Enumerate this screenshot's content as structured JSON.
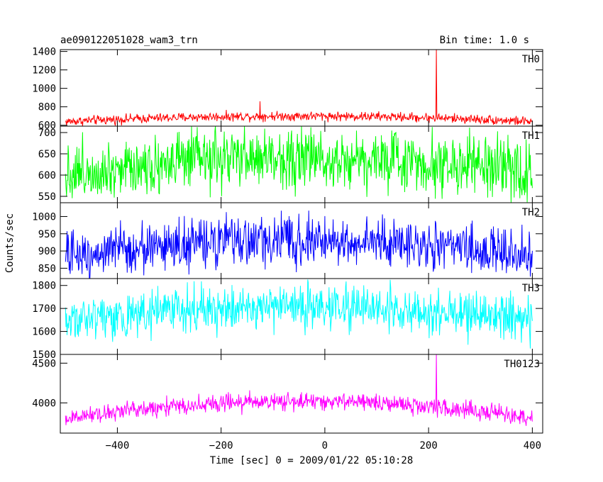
{
  "chart_data": {
    "type": "line",
    "title_left": "ae090122051028_wam3_trn",
    "title_right": "Bin time: 1.0 s",
    "xlabel": "Time [sec] 0 = 2009/01/22 05:10:28",
    "ylabel": "Counts/sec",
    "xlim": [
      -510,
      420
    ],
    "x_ticks": [
      -400,
      -200,
      0,
      200,
      400
    ],
    "x_tick_labels": [
      "−400",
      "−200",
      "0",
      "200",
      "400"
    ],
    "bin_time": 1.0,
    "x_start": -500,
    "x_end": 400,
    "panels": [
      {
        "name": "TH0",
        "color": "#ff0000",
        "ylim": [
          590,
          1420
        ],
        "y_ticks": [
          600,
          800,
          1000,
          1200,
          1400
        ],
        "baseline": {
          "edges": 640,
          "center": 700
        },
        "noise": 25,
        "spikes": [
          {
            "x": 215,
            "y": 1420
          },
          {
            "x": -125,
            "y": 860
          }
        ]
      },
      {
        "name": "TH1",
        "color": "#00ff00",
        "ylim": [
          535,
          715
        ],
        "y_ticks": [
          550,
          600,
          650,
          700
        ],
        "baseline": {
          "edges": 605,
          "center": 640
        },
        "noise": 35,
        "spikes": []
      },
      {
        "name": "TH2",
        "color": "#0000ff",
        "ylim": [
          820,
          1040
        ],
        "y_ticks": [
          850,
          900,
          950,
          1000
        ],
        "baseline": {
          "edges": 885,
          "center": 930
        },
        "noise": 35,
        "spikes": []
      },
      {
        "name": "TH3",
        "color": "#00ffff",
        "ylim": [
          1500,
          1830
        ],
        "y_ticks": [
          1500,
          1600,
          1700,
          1800
        ],
        "baseline": {
          "edges": 1650,
          "center": 1705
        },
        "noise": 48,
        "spikes": []
      },
      {
        "name": "TH0123",
        "color": "#ff00ff",
        "ylim": [
          3620,
          4610
        ],
        "y_ticks": [
          4000,
          4500
        ],
        "baseline": {
          "edges": 3800,
          "center": 4020
        },
        "noise": 55,
        "spikes": [
          {
            "x": 215,
            "y": 4610
          }
        ]
      }
    ]
  }
}
